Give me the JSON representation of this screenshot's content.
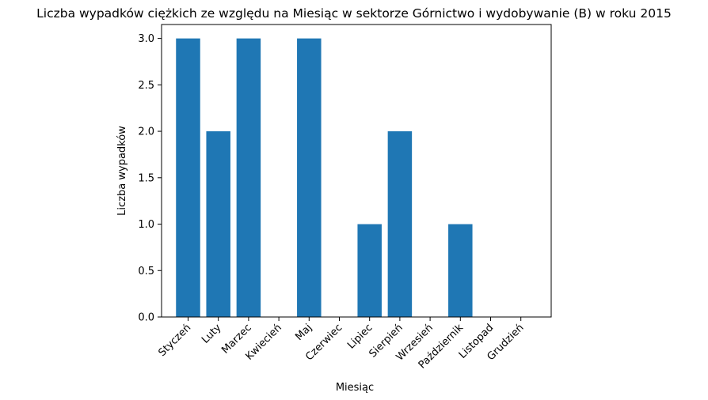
{
  "chart_data": {
    "type": "bar",
    "title": "Liczba wypadków ciężkich ze względu na Miesiąc w sektorze Górnictwo i wydobywanie (B)   w roku 2015",
    "xlabel": "Miesiąc",
    "ylabel": "Liczba wypadków",
    "categories": [
      "Styczeń",
      "Luty",
      "Marzec",
      "Kwiecień",
      "Maj",
      "Czerwiec",
      "Lipiec",
      "Sierpień",
      "Wrzesień",
      "Październik",
      "Listopad",
      "Grudzień"
    ],
    "values": [
      3,
      2,
      3,
      0,
      3,
      0,
      1,
      2,
      0,
      1,
      0,
      0
    ],
    "ylim": [
      0,
      3.15
    ],
    "yticks": [
      "0.0",
      "0.5",
      "1.0",
      "1.5",
      "2.0",
      "2.5",
      "3.0"
    ],
    "bar_color": "#1f77b4",
    "grid": false,
    "legend": "none"
  }
}
